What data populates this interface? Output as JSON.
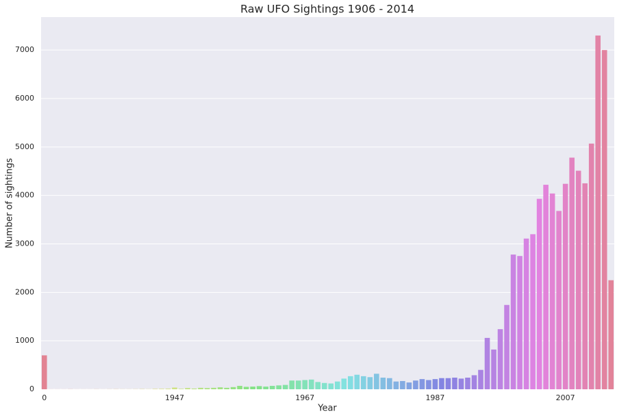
{
  "chart_data": {
    "type": "bar",
    "title": "Raw UFO Sightings 1906 - 2014",
    "x_label": "Year",
    "y_label": "Number of sightings",
    "categories": [
      "0",
      null,
      null,
      null,
      null,
      null,
      null,
      null,
      null,
      null,
      null,
      null,
      null,
      null,
      null,
      null,
      null,
      null,
      null,
      null,
      "1947",
      null,
      null,
      null,
      null,
      null,
      null,
      null,
      null,
      null,
      null,
      null,
      null,
      null,
      null,
      null,
      null,
      null,
      null,
      null,
      "1967",
      null,
      null,
      null,
      null,
      null,
      null,
      null,
      null,
      null,
      null,
      null,
      null,
      null,
      null,
      null,
      null,
      null,
      null,
      null,
      "1987",
      null,
      null,
      null,
      null,
      null,
      null,
      null,
      null,
      null,
      null,
      null,
      null,
      null,
      null,
      null,
      null,
      null,
      null,
      null,
      "2007",
      null,
      null,
      null,
      null,
      null,
      null,
      null
    ],
    "values": [
      700,
      1,
      1,
      1,
      2,
      1,
      1,
      1,
      2,
      1,
      2,
      3,
      2,
      2,
      3,
      5,
      3,
      8,
      10,
      12,
      35,
      10,
      25,
      15,
      30,
      25,
      30,
      40,
      30,
      45,
      70,
      50,
      55,
      65,
      55,
      70,
      80,
      90,
      180,
      180,
      190,
      200,
      150,
      130,
      120,
      160,
      220,
      270,
      300,
      270,
      250,
      320,
      240,
      230,
      160,
      170,
      140,
      180,
      210,
      190,
      210,
      230,
      230,
      240,
      220,
      240,
      290,
      400,
      1060,
      820,
      1240,
      1740,
      2780,
      2750,
      3110,
      3200,
      3930,
      4220,
      4040,
      3680,
      4240,
      4780,
      4510,
      4250,
      5070,
      7300,
      7000,
      2250
    ],
    "palette": {
      "name": "husl",
      "hue_start": 350,
      "saturation": 62,
      "lightness": 70
    },
    "ylim": [
      0,
      7680
    ],
    "yticks": [
      0,
      1000,
      2000,
      3000,
      4000,
      5000,
      6000,
      7000
    ],
    "grid": true
  }
}
